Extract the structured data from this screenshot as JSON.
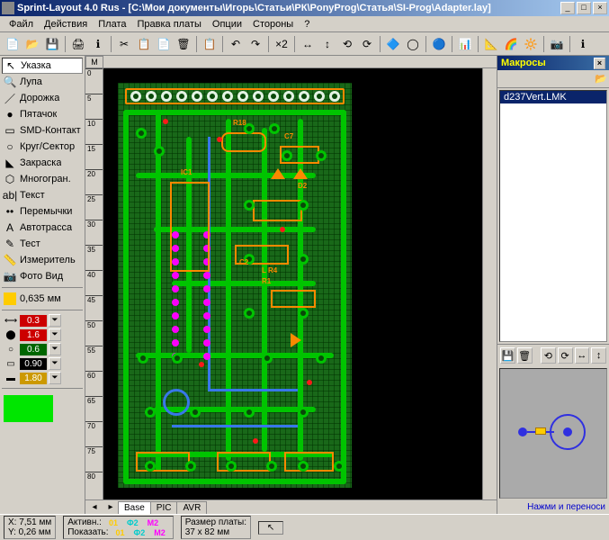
{
  "title": "Sprint-Layout 4.0 Rus - [C:\\Мои документы\\Игорь\\Статьи\\РК\\PonyProg\\Статья\\SI-Prog\\Adapter.lay]",
  "menu": [
    "Файл",
    "Действия",
    "Плата",
    "Правка платы",
    "Опции",
    "Стороны",
    "?"
  ],
  "tools": [
    {
      "icon": "↖",
      "label": "Указка",
      "active": true
    },
    {
      "icon": "🔍",
      "label": "Лупа"
    },
    {
      "icon": "／",
      "label": "Дорожка"
    },
    {
      "icon": "●",
      "label": "Пятачок"
    },
    {
      "icon": "▭",
      "label": "SMD-Контакт"
    },
    {
      "icon": "○",
      "label": "Круг/Сектор"
    },
    {
      "icon": "◣",
      "label": "Закраска"
    },
    {
      "icon": "⬡",
      "label": "Многогран."
    },
    {
      "icon": "ab|",
      "label": "Текст"
    },
    {
      "icon": "••",
      "label": "Перемычки"
    },
    {
      "icon": "A",
      "label": "Автотрасса"
    },
    {
      "icon": "✎",
      "label": "Тест"
    },
    {
      "icon": "📏",
      "label": "Измеритель"
    },
    {
      "icon": "📷",
      "label": "Фото Вид"
    }
  ],
  "grid": {
    "value": "0,635 мм"
  },
  "tracks": [
    {
      "icon": "⟷",
      "value": "0.3",
      "color": "#cc0000"
    },
    {
      "icon": "⬤",
      "value": "1.6",
      "color": "#cc0000"
    },
    {
      "icon": "○",
      "value": "0.6",
      "color": "#006600"
    },
    {
      "icon": "▭",
      "value": "0.90",
      "color": "#000000"
    },
    {
      "icon": "▬",
      "value": "1.80",
      "color": "#cc9900"
    }
  ],
  "swatch_color": "#00e600",
  "toolbar_icons": [
    "📄",
    "📂",
    "💾",
    "|",
    "🖨",
    "ℹ",
    "|",
    "✂",
    "📋",
    "📄",
    "🗑",
    "|",
    "📋",
    "|",
    "↶",
    "↷",
    "|",
    "×2",
    "|",
    "↔",
    "↕",
    "⟲",
    "⟳",
    "|",
    "🔷",
    "◯",
    "|",
    "🔵",
    "|",
    "📊",
    "|",
    "📐",
    "🌈",
    "🔆",
    "|",
    "📷",
    "|",
    "ℹ"
  ],
  "ruler": {
    "unit": "M",
    "vticks": [
      "0",
      "5",
      "10",
      "15",
      "20",
      "25",
      "30",
      "35",
      "40",
      "45",
      "50",
      "55",
      "60",
      "65",
      "70",
      "75",
      "80"
    ]
  },
  "tabs": [
    {
      "label": "Base",
      "active": true
    },
    {
      "label": "PIC",
      "active": false
    },
    {
      "label": "AVR",
      "active": false
    }
  ],
  "macro": {
    "title": "Макросы",
    "item": "d237Vert.LMK",
    "buttons": [
      "💾",
      "🗑",
      "|",
      "⟲",
      "⟳",
      "↔",
      "↕"
    ],
    "instruction": "Нажми и переноси"
  },
  "status": {
    "x": "X: 7,51 мм",
    "y": "Y: 0,26 мм",
    "active_label": "Активн.:",
    "show_label": "Показать:",
    "layers": [
      {
        "name": "01",
        "color": "#ffcc00"
      },
      {
        "name": "Ф2",
        "color": "#00cccc"
      },
      {
        "name": "М2",
        "color": "#ff00ff"
      }
    ],
    "size_label": "Размер платы:",
    "size_value": "37 x 82 мм"
  }
}
